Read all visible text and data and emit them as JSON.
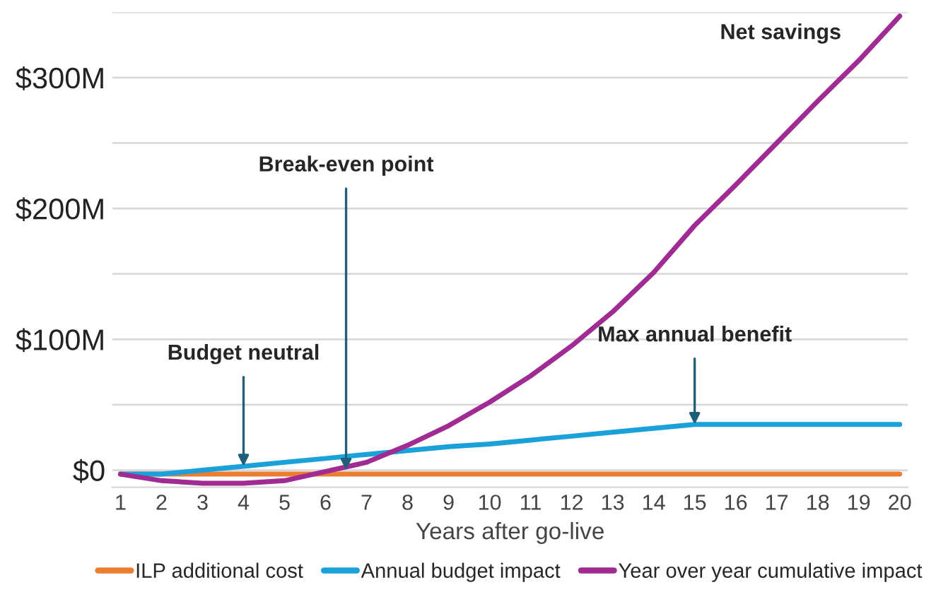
{
  "chart_data": {
    "type": "line",
    "xlabel": "Years after go-live",
    "x": [
      1,
      2,
      3,
      4,
      5,
      6,
      7,
      8,
      9,
      10,
      11,
      12,
      13,
      14,
      15,
      16,
      17,
      18,
      19,
      20
    ],
    "series": [
      {
        "name": "ILP additional cost",
        "color": "#ed7d31",
        "values": [
          -3,
          -3,
          -3,
          -3,
          -3,
          -3,
          -3,
          -3,
          -3,
          -3,
          -3,
          -3,
          -3,
          -3,
          -3,
          -3,
          -3,
          -3,
          -3,
          -3
        ]
      },
      {
        "name": "Annual budget impact",
        "color": "#1ba1d9",
        "values": [
          -3,
          -3,
          0,
          3,
          6,
          9,
          12,
          15,
          18,
          20,
          23,
          26,
          29,
          32,
          35,
          35,
          35,
          35,
          35,
          35
        ]
      },
      {
        "name": "Year over year cumulative impact",
        "color": "#a02b93",
        "values": [
          -3,
          -8,
          -10,
          -10,
          -8,
          -1,
          6,
          19,
          34,
          52,
          72,
          95,
          121,
          151,
          187,
          218,
          250,
          282,
          313,
          347
        ]
      }
    ],
    "xlim": [
      0.8,
      20.2
    ],
    "xticks": [
      1,
      2,
      3,
      4,
      5,
      6,
      7,
      8,
      9,
      10,
      11,
      12,
      13,
      14,
      15,
      16,
      17,
      18,
      19,
      20
    ],
    "ylim": [
      -13,
      350
    ],
    "yticks": [
      {
        "value": 0,
        "label": "$0"
      },
      {
        "value": 50,
        "label": null
      },
      {
        "value": 100,
        "label": "$100M"
      },
      {
        "value": 150,
        "label": null
      },
      {
        "value": 200,
        "label": "$200M"
      },
      {
        "value": 250,
        "label": null
      },
      {
        "value": 300,
        "label": "$300M"
      },
      {
        "value": 350,
        "label": null
      }
    ],
    "grid": "y",
    "legend": "bottom",
    "annotations": [
      {
        "text": "Budget neutral",
        "x": 4,
        "y": 3
      },
      {
        "text": "Break-even point",
        "x": 6.5,
        "y": 0
      },
      {
        "text": "Max annual benefit",
        "x": 15,
        "y": 35
      },
      "Net savings"
    ]
  }
}
